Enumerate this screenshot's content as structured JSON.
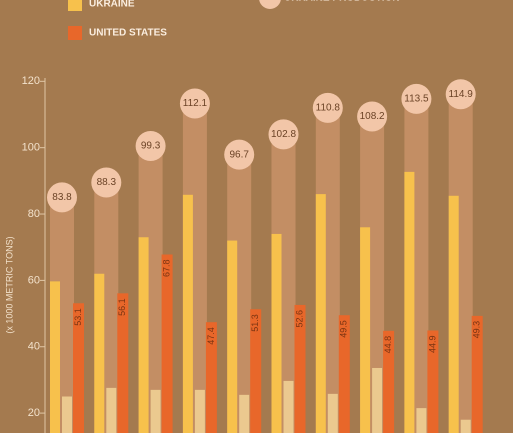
{
  "chart_data": {
    "type": "bar",
    "y_label": "(x 1000 METRIC TONS)",
    "ylim": [
      14,
      121
    ],
    "yticks": [
      20,
      40,
      60,
      80,
      100,
      120
    ],
    "series": [
      {
        "name": "UKRAINE PRODUCTION",
        "color": "#e8a67e",
        "values": [
          83.8,
          88.3,
          99.3,
          112.1,
          96.7,
          102.8,
          110.8,
          108.2,
          113.5,
          114.9
        ]
      },
      {
        "name": "UKRAINE",
        "color": "#f7c14c",
        "values": [
          59.7,
          62,
          73,
          85.8,
          72,
          74,
          86,
          76,
          92.7,
          85.5
        ]
      },
      {
        "color": "#efcf94",
        "values": [
          25,
          27.6,
          27,
          27,
          25.5,
          29.7,
          25.8,
          33.6,
          21.5,
          18
        ]
      },
      {
        "name": "UNITED STATES",
        "color": "#e8672a",
        "values": [
          53.1,
          56.1,
          67.8,
          47.4,
          51.3,
          52.6,
          49.5,
          44.8,
          44.9,
          49.3
        ]
      }
    ]
  }
}
